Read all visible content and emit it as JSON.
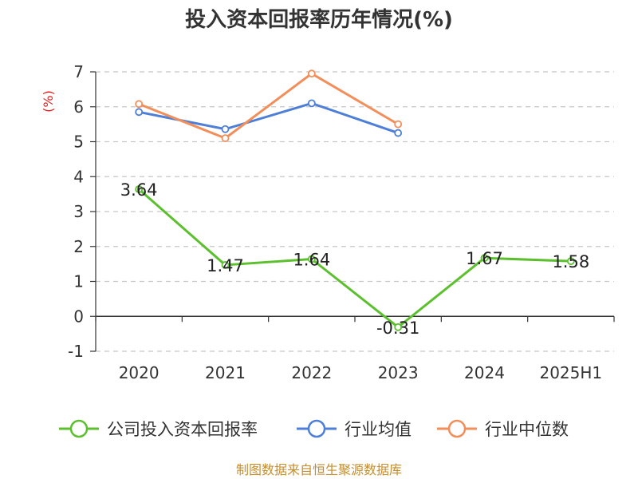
{
  "chart_data": {
    "type": "line",
    "title": "投入资本回报率历年情况(%)",
    "ylabel": "(%)",
    "xlabel": "",
    "categories": [
      "2020",
      "2021",
      "2022",
      "2023",
      "2024",
      "2025H1"
    ],
    "ylim": [
      -1,
      7
    ],
    "yticks": [
      -1,
      0,
      1,
      2,
      3,
      4,
      5,
      6,
      7
    ],
    "grid": true,
    "legend_position": "bottom",
    "series": [
      {
        "name": "公司投入资本回报率",
        "color": "#5cc02e",
        "values": [
          3.64,
          1.47,
          1.64,
          -0.31,
          1.67,
          1.58
        ],
        "labels": [
          "3.64",
          "1.47",
          "1.64",
          "-0.31",
          "1.67",
          "1.58"
        ]
      },
      {
        "name": "行业均值",
        "color": "#4d7fd8",
        "values": [
          5.85,
          5.36,
          6.1,
          5.25,
          null,
          null
        ]
      },
      {
        "name": "行业中位数",
        "color": "#f28e5a",
        "values": [
          6.08,
          5.1,
          6.95,
          5.5,
          null,
          null
        ]
      }
    ]
  },
  "source": "制图数据来自恒生聚源数据库"
}
